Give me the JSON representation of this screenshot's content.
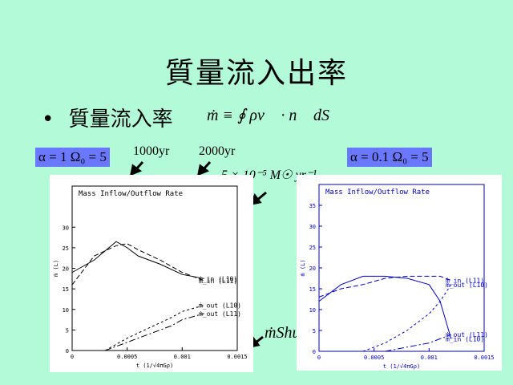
{
  "slide": {
    "title": "質量流入出率",
    "bullet_marker": "•",
    "bullet_text": "質量流入率",
    "formula": "ṁ ≡ ∮ ρv⃗ · n⃗ dS"
  },
  "annotations": {
    "left_params": "α = 1  Ω₀ = 5",
    "right_params": "α = 0.1  Ω₀ = 5",
    "time1": "1000yr",
    "time2": "2000yr",
    "rate_unit": "5 × 10⁻⁵ M☉ yr⁻¹",
    "shu": "ṁShu"
  },
  "chart_data": [
    {
      "type": "line",
      "title": "Mass Inflow/Outflow Rate",
      "xlabel": "t (1/√4πGρ)",
      "ylabel": "ṁ (L)",
      "xlim": [
        0,
        0.0015
      ],
      "ylim": [
        0,
        40
      ],
      "xticks": [
        "0",
        "0.0005",
        "0.001",
        "0.0015"
      ],
      "yticks": [
        "0",
        "5",
        "10",
        "15",
        "20",
        "25",
        "30"
      ],
      "series": [
        {
          "name": "ṁ_in (L10)",
          "x": [
            0,
            0.0002,
            0.0004,
            0.0005,
            0.0006,
            0.0008,
            0.001,
            0.0012
          ],
          "y": [
            19,
            22,
            26.5,
            25,
            23,
            21,
            18.5,
            17.5
          ]
        },
        {
          "name": "ṁ_in (L11)",
          "x": [
            0,
            0.0002,
            0.0004,
            0.0005,
            0.0006,
            0.0008,
            0.001,
            0.0012
          ],
          "y": [
            16,
            23,
            25.5,
            26,
            24.5,
            22,
            19,
            17
          ]
        },
        {
          "name": "ṁ_out (L10)",
          "x": [
            0.0003,
            0.0005,
            0.0007,
            0.0009,
            0.001,
            0.0012
          ],
          "y": [
            0,
            3,
            5.5,
            8,
            9.5,
            11
          ]
        },
        {
          "name": "ṁ_out (L11)",
          "x": [
            0.0003,
            0.0005,
            0.0007,
            0.0009,
            0.001,
            0.0012
          ],
          "y": [
            0,
            2,
            4,
            6,
            7.5,
            9
          ]
        }
      ]
    },
    {
      "type": "line",
      "title": "Mass Inflow/Outflow Rate",
      "xlabel": "t (1/√4πGρ)",
      "ylabel": "ṁ (L)",
      "xlim": [
        0,
        0.0015
      ],
      "ylim": [
        0,
        40
      ],
      "xticks": [
        "0",
        "0.0005",
        "0.001",
        "0.0015"
      ],
      "yticks": [
        "0",
        "5",
        "10",
        "15",
        "20",
        "25",
        "30",
        "35"
      ],
      "series": [
        {
          "name": "ṁ_in (L10)",
          "x": [
            0,
            0.0002,
            0.0004,
            0.0006,
            0.0008,
            0.001,
            0.0011,
            0.0012
          ],
          "y": [
            12,
            16,
            18,
            18,
            17.5,
            16,
            12,
            3
          ]
        },
        {
          "name": "ṁ_in (L11)",
          "x": [
            0,
            0.0002,
            0.0004,
            0.0006,
            0.0008,
            0.0011,
            0.0012
          ],
          "y": [
            13,
            15,
            16,
            17.5,
            18,
            18,
            17
          ]
        },
        {
          "name": "ṁ_out (L10)",
          "x": [
            0.0004,
            0.0006,
            0.0008,
            0.001,
            0.0011,
            0.0012
          ],
          "y": [
            0,
            2,
            5,
            9,
            12,
            16
          ]
        },
        {
          "name": "ṁ_out (L11)",
          "x": [
            0.0006,
            0.0008,
            0.001,
            0.0012
          ],
          "y": [
            0,
            1,
            2,
            4
          ]
        }
      ]
    }
  ]
}
